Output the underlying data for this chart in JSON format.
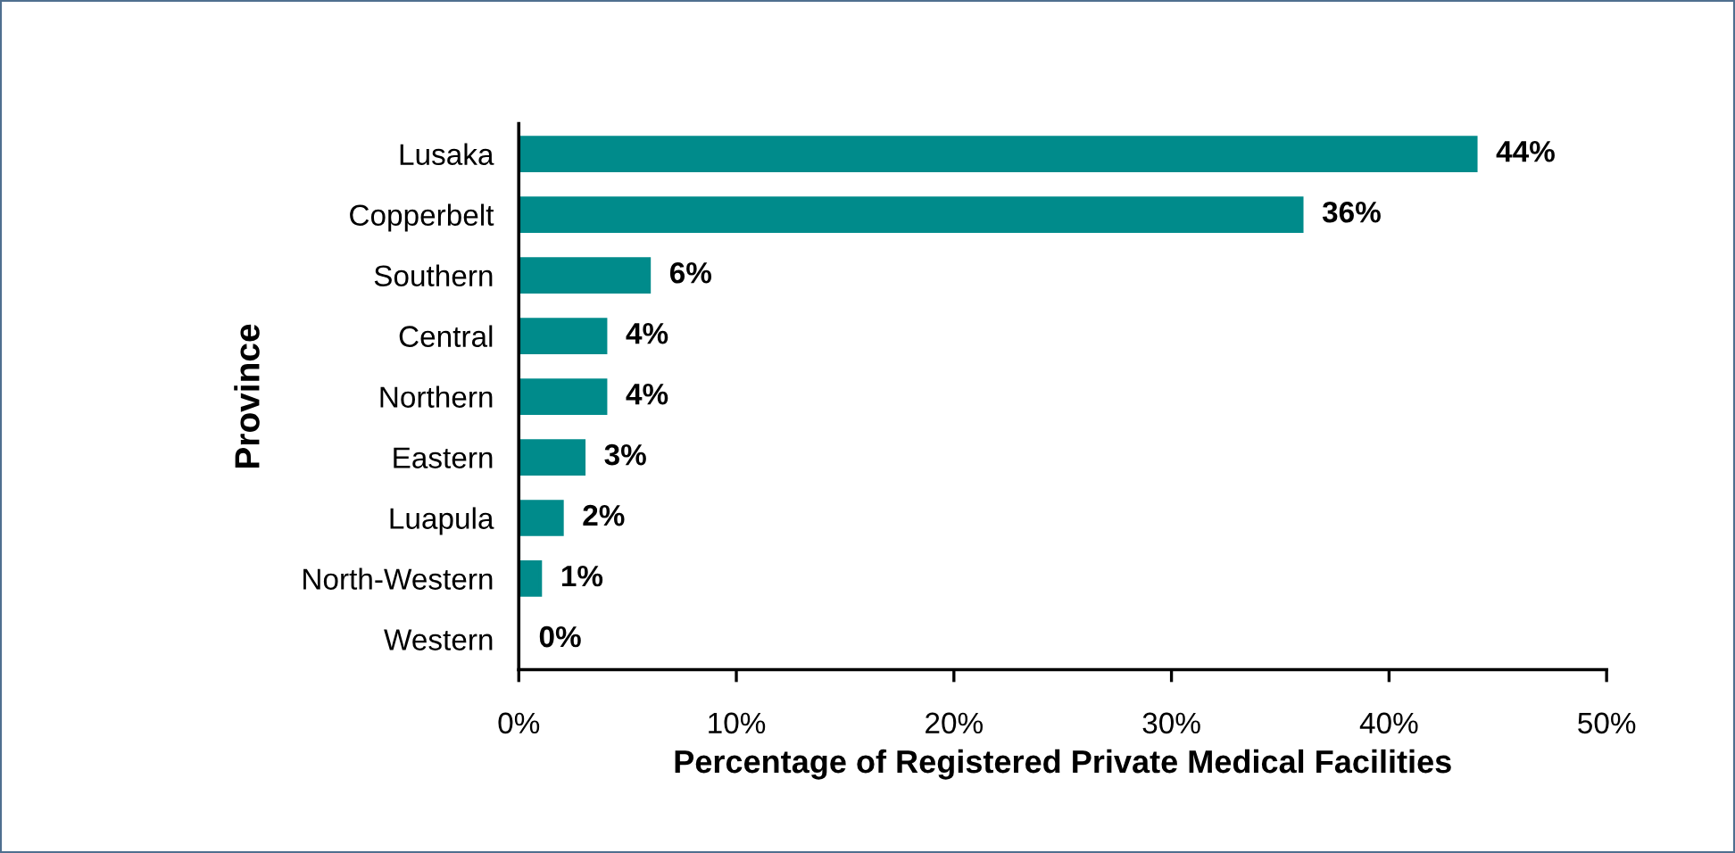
{
  "chart_data": {
    "type": "bar",
    "orientation": "horizontal",
    "categories": [
      "Lusaka",
      "Copperbelt",
      "Southern",
      "Central",
      "Northern",
      "Eastern",
      "Luapula",
      "North-Western",
      "Western"
    ],
    "values": [
      44,
      36,
      6,
      4,
      4,
      3,
      2,
      1,
      0
    ],
    "color": "#008b8b",
    "value_labels": [
      "44%",
      "36%",
      "6%",
      "4%",
      "4%",
      "3%",
      "2%",
      "1%",
      "0%"
    ],
    "xlim": [
      0,
      50
    ],
    "xticks": [
      {
        "value": 0,
        "label": "0%"
      },
      {
        "value": 10,
        "label": "10%"
      },
      {
        "value": 20,
        "label": "20%"
      },
      {
        "value": 30,
        "label": "30%"
      },
      {
        "value": 40,
        "label": "40%"
      },
      {
        "value": 50,
        "label": "50%"
      }
    ],
    "xlabel": "Percentage of Registered Private Medical Facilities",
    "ylabel": "Province"
  }
}
